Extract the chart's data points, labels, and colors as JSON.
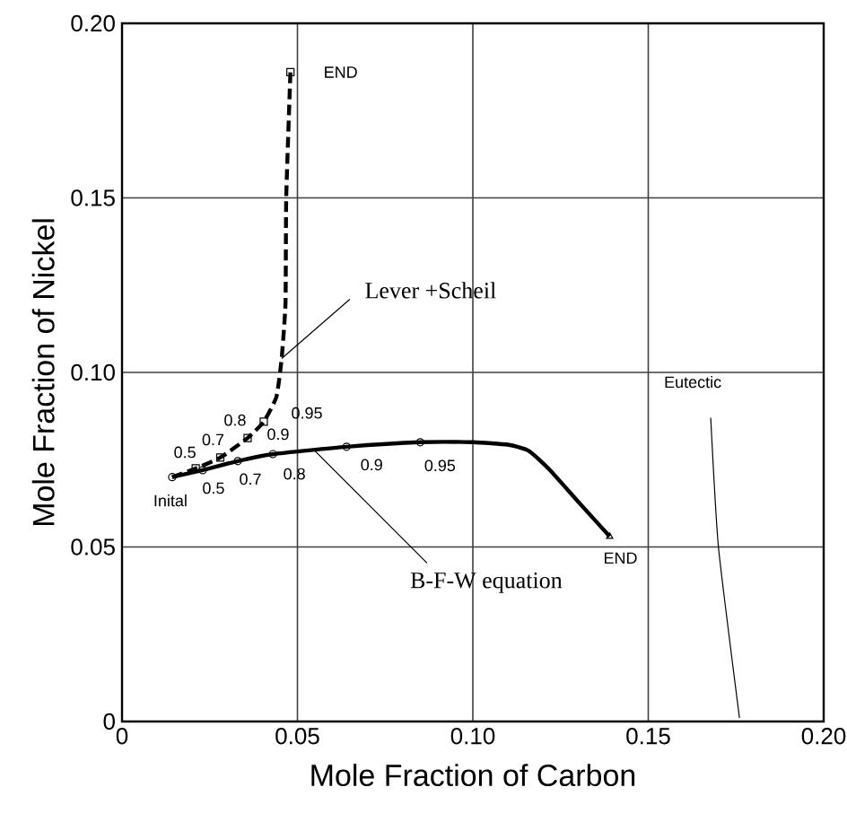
{
  "chart_data": {
    "type": "line",
    "xlabel": "Mole Fraction of Carbon",
    "ylabel": "Mole Fraction of Nickel",
    "xlim": [
      0,
      0.2
    ],
    "ylim": [
      0,
      0.2
    ],
    "xticks": [
      0,
      0.05,
      {
        "value": 0.1,
        "label": "0.10"
      },
      0.15,
      {
        "value": 0.2,
        "label": "0.20"
      }
    ],
    "yticks": [
      0,
      0.05,
      {
        "value": 0.1,
        "label": "0.10"
      },
      0.15,
      {
        "value": 0.2,
        "label": "0.20"
      }
    ],
    "grid": true,
    "series": [
      {
        "color": "#000000",
        "line_style": "solid",
        "x": [
          0.0143,
          0.023,
          0.033,
          0.043,
          0.064,
          0.085,
          0.1,
          0.11,
          0.116,
          0.122,
          0.13,
          0.139
        ],
        "values": [
          0.07,
          0.072,
          0.0746,
          0.0766,
          0.0787,
          0.08,
          0.08,
          0.0793,
          0.0775,
          0.072,
          0.063,
          0.053
        ]
      },
      {
        "color": "#000000",
        "line_style": "dashed",
        "x": [
          0.0143,
          0.021,
          0.028,
          0.0358,
          0.0404,
          0.044,
          0.0455,
          0.0466,
          0.0468,
          0.048
        ],
        "values": [
          0.07,
          0.0725,
          0.0756,
          0.0812,
          0.0859,
          0.093,
          0.104,
          0.12,
          0.15,
          0.186
        ]
      },
      {
        "color": "#000000",
        "line_style": "solid",
        "x": [
          0.1678,
          0.17,
          0.176
        ],
        "values": [
          0.087,
          0.05,
          0.001
        ]
      },
      {
        "type": "scatter",
        "marker": "circle",
        "color": "#000000",
        "x": [
          0.0143,
          0.023,
          0.033,
          0.043,
          0.064,
          0.085
        ],
        "values": [
          0.07,
          0.072,
          0.0746,
          0.0766,
          0.0787,
          0.08
        ]
      },
      {
        "type": "scatter",
        "marker": "square",
        "color": "#000000",
        "x": [
          0.021,
          0.028,
          0.0358,
          0.0404,
          0.048
        ],
        "values": [
          0.0725,
          0.0756,
          0.0812,
          0.0859,
          0.186
        ]
      },
      {
        "type": "scatter",
        "marker": "triangle",
        "color": "#000000",
        "x": [
          0.139
        ],
        "values": [
          0.053
        ]
      }
    ],
    "annotations": [
      {
        "text": "Inital",
        "x": 0.0143,
        "y": 0.07
      },
      {
        "text": "0.5",
        "x": 0.023,
        "y": 0.072
      },
      {
        "text": "0.7",
        "x": 0.033,
        "y": 0.0746
      },
      {
        "text": "0.8",
        "x": 0.043,
        "y": 0.0766
      },
      {
        "text": "0.9",
        "x": 0.064,
        "y": 0.0787
      },
      {
        "text": "0.95",
        "x": 0.085,
        "y": 0.08
      },
      {
        "text": "0.5",
        "x": 0.021,
        "y": 0.0725
      },
      {
        "text": "0.7",
        "x": 0.028,
        "y": 0.0756
      },
      {
        "text": "0.8",
        "x": 0.0358,
        "y": 0.0812
      },
      {
        "text": "0.9",
        "x": 0.0404,
        "y": 0.0859
      },
      {
        "text": "0.95",
        "x": 0.044,
        "y": 0.093
      },
      {
        "text": "END",
        "x": 0.048,
        "y": 0.186
      },
      {
        "text": "END",
        "x": 0.139,
        "y": 0.053
      },
      {
        "text": "Eutectic",
        "x": 0.1678,
        "y": 0.087
      },
      {
        "text": "Lever +Scheil",
        "x": 0.0455,
        "y": 0.104
      },
      {
        "text": "B-F-W equation",
        "x": 0.0547,
        "y": 0.0778
      }
    ]
  }
}
